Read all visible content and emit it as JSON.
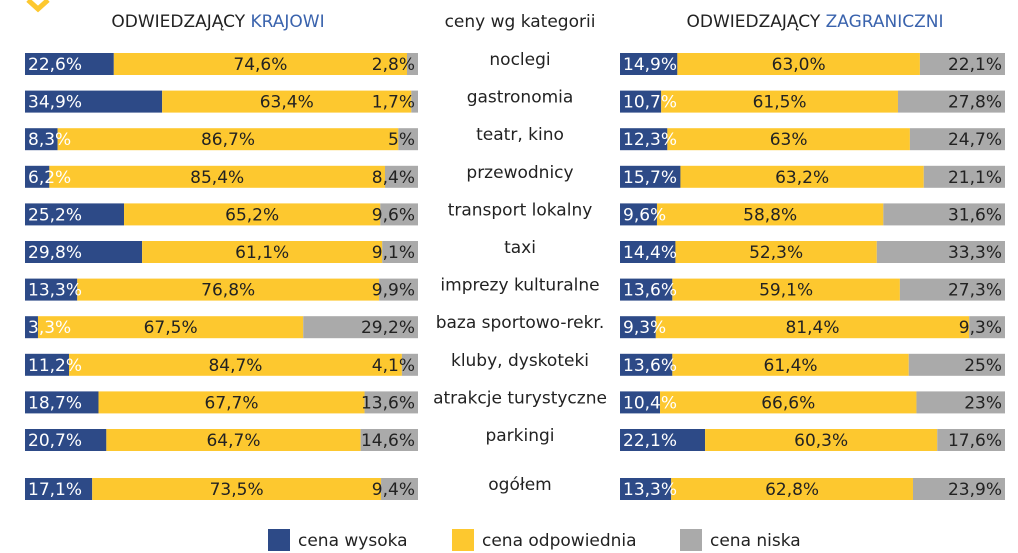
{
  "chart_data": [
    {
      "type": "bar",
      "stacked": true,
      "title": "ODWIEDZAJĄCY",
      "title_accent": "KRAJOWI",
      "categories_title": "ceny wg kategorii",
      "categories": [
        "noclegi",
        "gastronomia",
        "teatr, kino",
        "przewodnicy",
        "transport lokalny",
        "taxi",
        "imprezy kulturalne",
        "baza sportowo-rekr.",
        "kluby, dyskoteki",
        "atrakcje turystyczne",
        "parkingi",
        "ogółem"
      ],
      "xlim": [
        0,
        100
      ],
      "series": [
        {
          "name": "cena wysoka",
          "color": "#2d4a87",
          "values": [
            22.6,
            34.9,
            8.3,
            6.2,
            25.2,
            29.8,
            13.3,
            3.3,
            11.2,
            18.7,
            20.7,
            17.1
          ],
          "value_labels": [
            "22,6%",
            "34,9%",
            "8,3%",
            "6,2%",
            "25,2%",
            "29,8%",
            "13,3%",
            "3,3%",
            "11,2%",
            "18,7%",
            "20,7%",
            "17,1%"
          ]
        },
        {
          "name": "cena odpowiednia",
          "color": "#fdc82f",
          "values": [
            74.6,
            63.4,
            86.7,
            85.4,
            65.2,
            61.1,
            76.8,
            67.5,
            84.7,
            67.7,
            64.7,
            73.5
          ],
          "value_labels": [
            "74,6%",
            "63,4%",
            "86,7%",
            "85,4%",
            "65,2%",
            "61,1%",
            "76,8%",
            "67,5%",
            "84,7%",
            "67,7%",
            "64,7%",
            "73,5%"
          ]
        },
        {
          "name": "cena niska",
          "color": "#aaaaaa",
          "values": [
            2.8,
            1.7,
            5,
            8.4,
            9.6,
            9.1,
            9.9,
            29.2,
            4.1,
            13.6,
            14.6,
            9.4
          ],
          "value_labels": [
            "2,8%",
            "1,7%",
            "5%",
            "8,4%",
            "9,6%",
            "9,1%",
            "9,9%",
            "29,2%",
            "4,1%",
            "13,6%",
            "14,6%",
            "9,4%"
          ]
        }
      ]
    },
    {
      "type": "bar",
      "stacked": true,
      "title": "ODWIEDZAJĄCY",
      "title_accent": "ZAGRANICZNI",
      "xlim": [
        0,
        100
      ],
      "series": [
        {
          "color": "#2d4a87",
          "values": [
            14.9,
            10.7,
            12.3,
            15.7,
            9.6,
            14.4,
            13.6,
            9.3,
            13.6,
            10.4,
            22.1,
            13.3
          ],
          "value_labels": [
            "14,9%",
            "10,7%",
            "12,3%",
            "15,7%",
            "9,6%",
            "14,4%",
            "13,6%",
            "9,3%",
            "13,6%",
            "10,4%",
            "22,1%",
            "13,3%"
          ]
        },
        {
          "color": "#fdc82f",
          "values": [
            63.0,
            61.5,
            63,
            63.2,
            58.8,
            52.3,
            59.1,
            81.4,
            61.4,
            66.6,
            60.3,
            62.8
          ],
          "value_labels": [
            "63,0%",
            "61,5%",
            "63%",
            "63,2%",
            "58,8%",
            "52,3%",
            "59,1%",
            "81,4%",
            "61,4%",
            "66,6%",
            "60,3%",
            "62,8%"
          ]
        },
        {
          "color": "#aaaaaa",
          "values": [
            22.1,
            27.8,
            24.7,
            21.1,
            31.6,
            33.3,
            27.3,
            9.3,
            25,
            23,
            17.6,
            23.9
          ],
          "value_labels": [
            "22,1%",
            "27,8%",
            "24,7%",
            "21,1%",
            "31,6%",
            "33,3%",
            "27,3%",
            "9,3%",
            "25%",
            "23%",
            "17,6%",
            "23,9%"
          ]
        }
      ]
    }
  ]
}
